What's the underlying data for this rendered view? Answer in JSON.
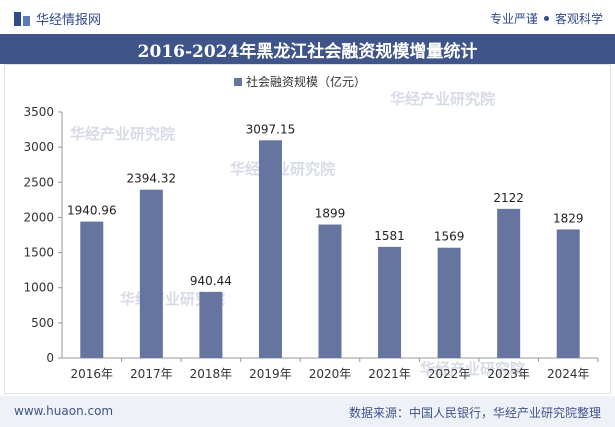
{
  "header": {
    "brand": "华经情报网",
    "tagline_left": "专业严谨",
    "tagline_right": "客观科学"
  },
  "title": "2016-2024年黑龙江社会融资规模增量统计",
  "footer": {
    "website": "www.huaon.com",
    "source": "数据来源：中国人民银行，华经产业研究院整理"
  },
  "colors": {
    "bar": "#6674a0",
    "title_bg": "#3f5489",
    "accent": "#2f4a8a"
  },
  "chart_data": {
    "type": "bar",
    "title": "2016-2024年黑龙江社会融资规模增量统计",
    "categories": [
      "2016年",
      "2017年",
      "2018年",
      "2019年",
      "2020年",
      "2021年",
      "2022年",
      "2023年",
      "2024年"
    ],
    "series": [
      {
        "name": "社会融资规模（亿元）",
        "values": [
          1940.96,
          2394.32,
          940.44,
          3097.15,
          1899,
          1581,
          1569,
          2122,
          1829
        ],
        "labels": [
          "1940.96",
          "2394.32",
          "940.44",
          "3097.15",
          "1899",
          "1581",
          "1569",
          "2122",
          "1829"
        ]
      }
    ],
    "yticks": [
      0,
      500,
      1000,
      1500,
      2000,
      2500,
      3000,
      3500
    ],
    "ylim": [
      0,
      3500
    ],
    "xlabel": "",
    "ylabel": "",
    "legend_position": "top-center",
    "grid": false
  },
  "watermark": "华经产业研究院"
}
